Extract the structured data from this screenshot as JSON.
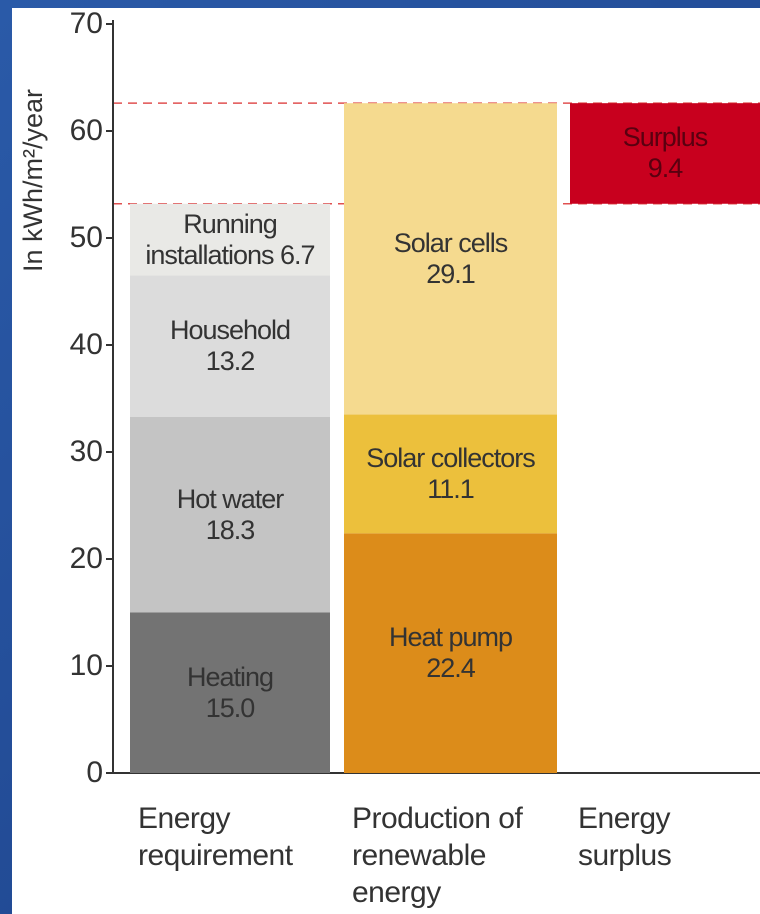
{
  "chart_data": {
    "type": "bar",
    "stacked": true,
    "y_label": "In kWh/m²/year",
    "categories": [
      "Energy requirement",
      "Production of renewable energy",
      "Energy surplus"
    ],
    "series": [
      {
        "name": "Heating",
        "color": "#737373",
        "values": [
          15,
          null,
          null
        ],
        "value_labels": [
          "15.0",
          null,
          null
        ]
      },
      {
        "name": "Hot water",
        "color": "#c4c4c4",
        "values": [
          18.3,
          null,
          null
        ]
      },
      {
        "name": "Household",
        "color": "#dcdcdc",
        "values": [
          13.2,
          null,
          null
        ]
      },
      {
        "name": "Running installations",
        "color": "#e9e9e6",
        "values": [
          6.7,
          null,
          null
        ]
      },
      {
        "name": "Heat pump",
        "color": "#dc8c1a",
        "values": [
          null,
          22.4,
          null
        ]
      },
      {
        "name": "Solar collectors",
        "color": "#ecc03c",
        "values": [
          null,
          11.1,
          null
        ]
      },
      {
        "name": "Solar cells",
        "color": "#f5da8f",
        "values": [
          null,
          29.1,
          null
        ]
      },
      {
        "name": "Surplus",
        "color": "#c8001e",
        "values": [
          null,
          null,
          9.4
        ]
      }
    ],
    "ylim": [
      0,
      70
    ],
    "yticks": [
      0,
      10,
      20,
      30,
      40,
      50,
      60,
      70
    ]
  }
}
